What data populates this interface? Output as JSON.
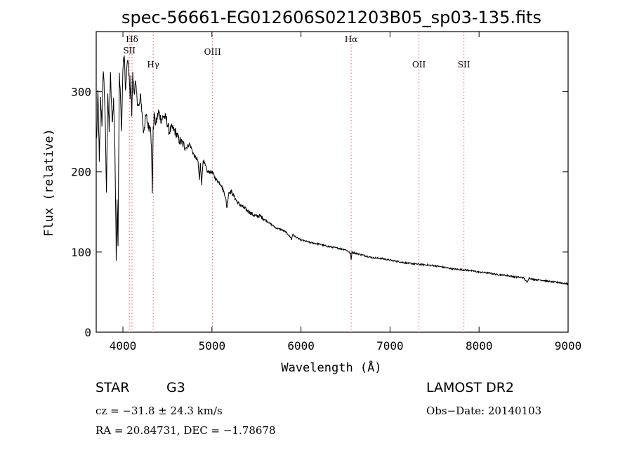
{
  "chart_data": {
    "type": "line",
    "title": "spec-56661-EG012606S021203B05_sp03-135.fits",
    "xlabel": "Wavelength (Å)",
    "ylabel": "Flux (relative)",
    "xlim": [
      3700,
      9000
    ],
    "ylim": [
      0,
      375
    ],
    "x_ticks": [
      4000,
      5000,
      6000,
      7000,
      8000,
      9000
    ],
    "y_ticks": [
      0,
      100,
      200,
      300
    ],
    "lines": [
      {
        "name": "Hδ",
        "wavelength": 4102
      },
      {
        "name": "SII",
        "wavelength": 4072
      },
      {
        "name": "Hγ",
        "wavelength": 4340
      },
      {
        "name": "OIII",
        "wavelength": 5007
      },
      {
        "name": "Hα",
        "wavelength": 6563
      },
      {
        "name": "OII",
        "wavelength": 7325
      },
      {
        "name": "SII",
        "wavelength": 7830
      }
    ],
    "line_color": "#e06060",
    "series": [
      {
        "name": "spectrum",
        "x": [
          3705,
          3720,
          3735,
          3750,
          3765,
          3780,
          3798,
          3815,
          3830,
          3845,
          3860,
          3880,
          3895,
          3910,
          3925,
          3935,
          3945,
          3960,
          3970,
          3985,
          4000,
          4015,
          4030,
          4050,
          4070,
          4080,
          4090,
          4100,
          4110,
          4125,
          4140,
          4160,
          4180,
          4200,
          4230,
          4260,
          4290,
          4310,
          4320,
          4330,
          4340,
          4350,
          4370,
          4400,
          4430,
          4460,
          4490,
          4520,
          4550,
          4590,
          4630,
          4670,
          4710,
          4750,
          4800,
          4840,
          4860,
          4870,
          4885,
          4900,
          4950,
          5000,
          5050,
          5100,
          5150,
          5168,
          5178,
          5190,
          5220,
          5270,
          5300,
          5360,
          5420,
          5480,
          5540,
          5600,
          5660,
          5720,
          5780,
          5830,
          5870,
          5885,
          5893,
          5905,
          5950,
          6000,
          6100,
          6200,
          6300,
          6400,
          6500,
          6540,
          6556,
          6563,
          6572,
          6600,
          6700,
          6800,
          6900,
          7000,
          7100,
          7200,
          7300,
          7400,
          7500,
          7600,
          7700,
          7800,
          7900,
          8000,
          8100,
          8200,
          8300,
          8400,
          8500,
          8540,
          8560,
          8600,
          8700,
          8800,
          8900,
          8950,
          9000
        ],
        "y": [
          240,
          300,
          210,
          290,
          260,
          330,
          280,
          175,
          300,
          250,
          320,
          260,
          290,
          230,
          90,
          170,
          110,
          320,
          300,
          250,
          330,
          345,
          300,
          340,
          320,
          290,
          315,
          270,
          320,
          300,
          310,
          290,
          280,
          295,
          250,
          270,
          255,
          260,
          230,
          175,
          250,
          270,
          260,
          275,
          265,
          270,
          265,
          250,
          255,
          250,
          240,
          235,
          230,
          235,
          220,
          215,
          190,
          210,
          185,
          215,
          200,
          200,
          190,
          185,
          170,
          155,
          165,
          175,
          175,
          165,
          160,
          155,
          150,
          145,
          145,
          140,
          135,
          130,
          128,
          125,
          120,
          118,
          115,
          122,
          118,
          115,
          112,
          110,
          107,
          105,
          103,
          100,
          98,
          90,
          100,
          99,
          96,
          93,
          92,
          90,
          88,
          86,
          85,
          84,
          83,
          81,
          79,
          78,
          77,
          75,
          74,
          72,
          71,
          69,
          68,
          62,
          68,
          66,
          65,
          63,
          62,
          61,
          60
        ]
      }
    ]
  },
  "info": {
    "object_class": "STAR",
    "subclass": "G3",
    "survey": "LAMOST DR2",
    "cz": "cz = −31.8 ± 24.3 km/s",
    "obs_date": "Obs−Date: 20140103",
    "coords": "RA =  20.84731, DEC =  −1.78678"
  }
}
